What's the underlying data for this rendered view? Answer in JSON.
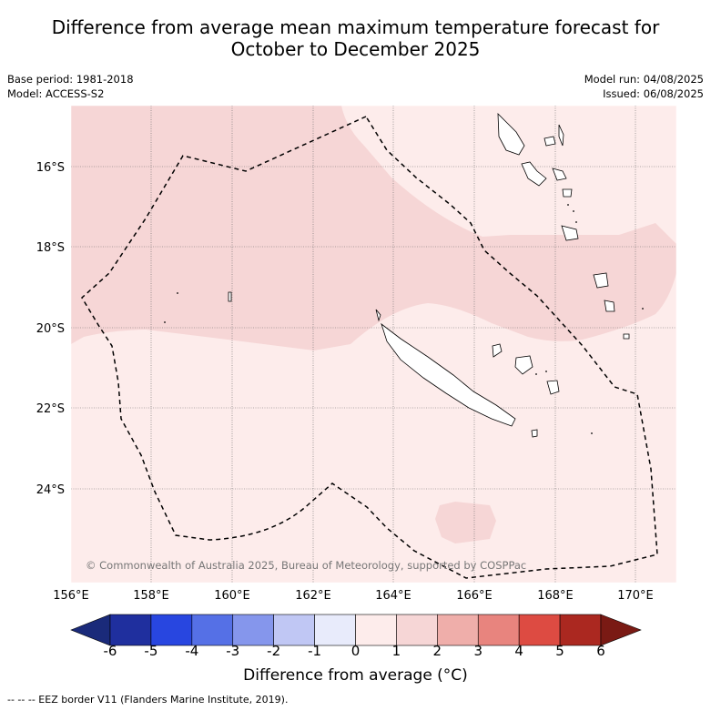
{
  "title": {
    "line1": "Difference from average mean maximum temperature forecast for",
    "line2": "October to December 2025"
  },
  "meta": {
    "base_period": "Base period: 1981-2018",
    "model": "Model: ACCESS-S2",
    "model_run": "Model run: 04/08/2025",
    "issued": "Issued: 06/08/2025"
  },
  "map": {
    "lon_labels": [
      "156°E",
      "158°E",
      "160°E",
      "162°E",
      "164°E",
      "166°E",
      "168°E",
      "170°E"
    ],
    "lat_labels": [
      "16°S",
      "18°S",
      "20°S",
      "22°S",
      "24°S"
    ],
    "copyright": "© Commonwealth of Australia 2025, Bureau of Meteorology, supported by COSPPac"
  },
  "colorbar": {
    "ticks": [
      "-6",
      "-5",
      "-4",
      "-3",
      "-2",
      "-1",
      "0",
      "1",
      "2",
      "3",
      "4",
      "5",
      "6"
    ],
    "colors": [
      "#1f2f9e",
      "#2846e0",
      "#5570e6",
      "#8596ec",
      "#c0c7f4",
      "#e8ebfb",
      "#fdeceb",
      "#f6d6d6",
      "#efaeaa",
      "#e8847e",
      "#dd4b42",
      "#ab2820"
    ],
    "under_color": "#1a2a7a",
    "over_color": "#7a1a14",
    "label": "Difference from average (°C)"
  },
  "footer": "--  --  -- EEZ border V11 (Flanders Marine Institute, 2019)."
}
